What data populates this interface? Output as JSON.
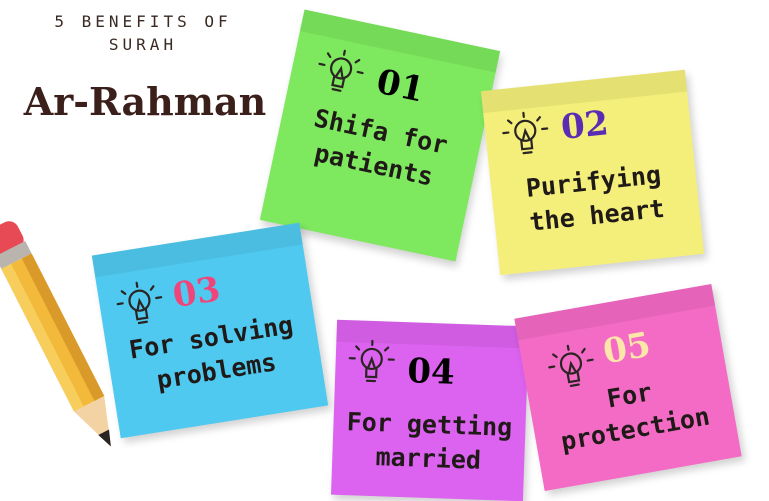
{
  "header": {
    "subtitle_line1": "5 BENEFITS OF",
    "subtitle_line2": "SURAH",
    "title": "Ar-Rahman"
  },
  "notes": [
    {
      "number": "01",
      "line1": "Shifa for",
      "line2": "patients",
      "color": "#7ee85f",
      "number_color": "#1f1a18",
      "icon": "lightbulb-icon"
    },
    {
      "number": "02",
      "line1": "Purifying",
      "line2": "the heart",
      "color": "#f4ef7a",
      "number_color": "#5b2bb3",
      "icon": "lightbulb-icon"
    },
    {
      "number": "03",
      "line1": "For solving",
      "line2": "problems",
      "color": "#4fc9f0",
      "number_color": "#f0457b",
      "icon": "lightbulb-icon"
    },
    {
      "number": "04",
      "line1": "For getting",
      "line2": "married",
      "color": "#dc62f0",
      "number_color": "#1f1a18",
      "icon": "lightbulb-icon"
    },
    {
      "number": "05",
      "line1": "For",
      "line2": "protection",
      "color": "#f46bc6",
      "number_color": "#fde7a8",
      "icon": "lightbulb-icon"
    }
  ],
  "decoration": {
    "pencil_icon": "pencil-icon"
  }
}
